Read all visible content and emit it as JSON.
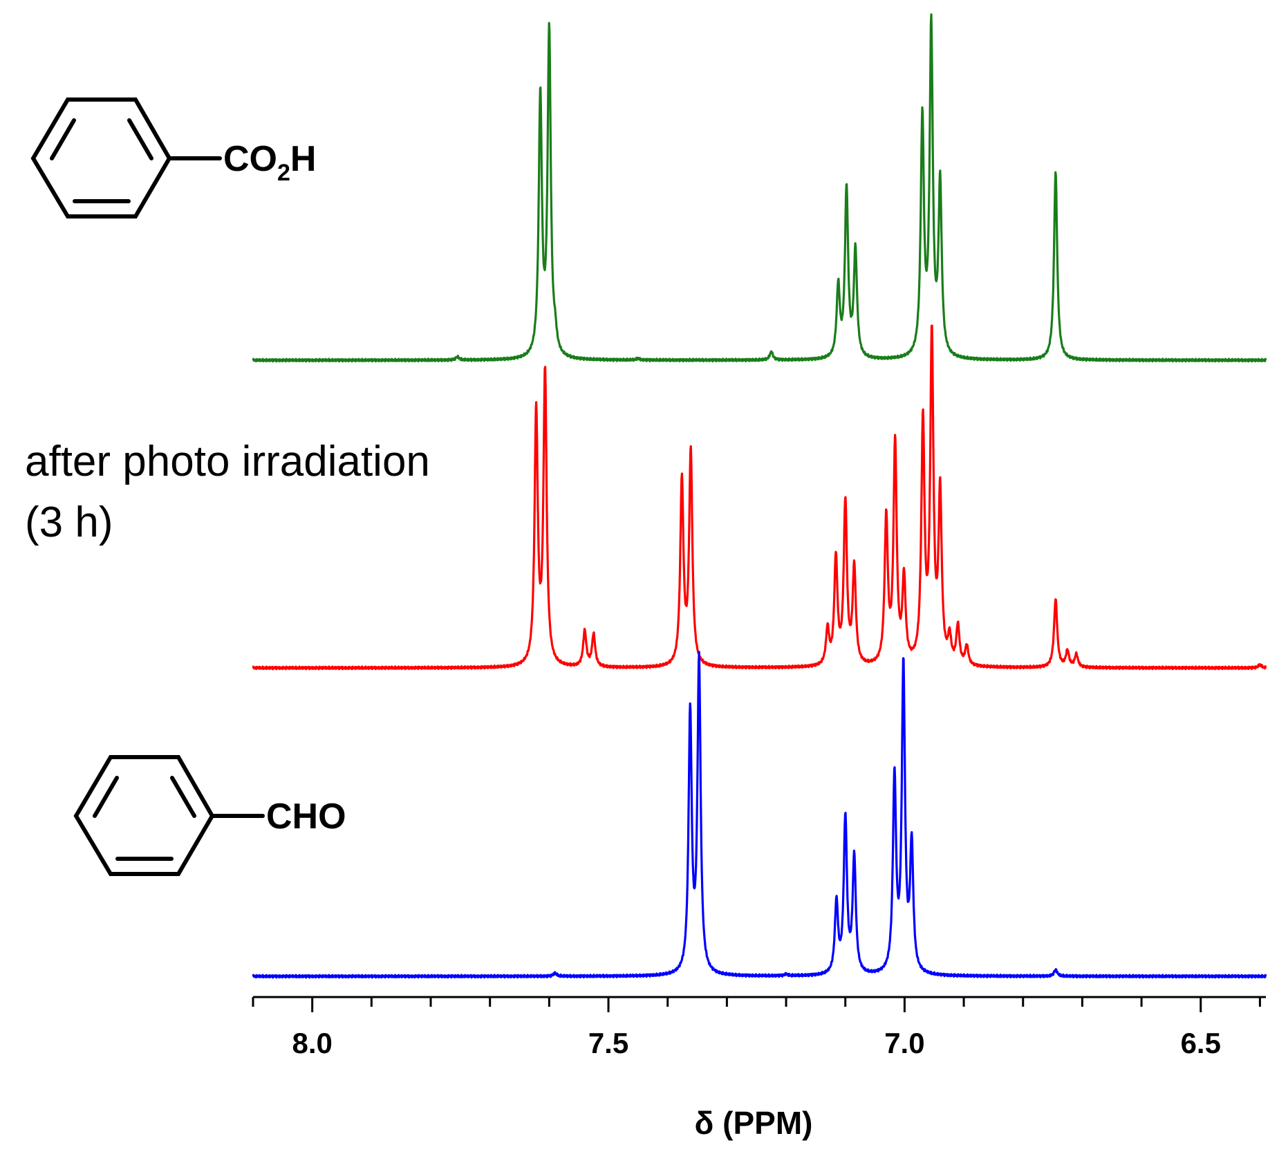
{
  "chart_data": {
    "type": "line",
    "xlabel": "δ (PPM)",
    "xlim": [
      8.1,
      6.39
    ],
    "x_reversed": true,
    "grid": false,
    "x_ticks": [
      {
        "value": 8.0,
        "label": "8.0"
      },
      {
        "value": 7.5,
        "label": "7.5"
      },
      {
        "value": 7.0,
        "label": "7.0"
      },
      {
        "value": 6.5,
        "label": "6.5"
      }
    ],
    "annotations": [
      {
        "id": "line1",
        "text": "after photo irradiation"
      },
      {
        "id": "line2",
        "text": "(3 h)"
      }
    ],
    "structures": {
      "acid": {
        "prefix": "CO",
        "subscript": "2",
        "suffix": "H"
      },
      "aldehyde": {
        "label": "CHO"
      }
    },
    "series": [
      {
        "key": "acid",
        "color": "#1a7d1a",
        "peaks": [
          {
            "x": 7.615,
            "h": 0.8
          },
          {
            "x": 7.6,
            "h": 1.0
          },
          {
            "x": 7.59,
            "h": 0.05
          },
          {
            "x": 7.225,
            "h": 0.025
          },
          {
            "x": 7.112,
            "h": 0.22
          },
          {
            "x": 7.098,
            "h": 0.52
          },
          {
            "x": 7.083,
            "h": 0.33
          },
          {
            "x": 6.97,
            "h": 0.73
          },
          {
            "x": 6.955,
            "h": 1.01
          },
          {
            "x": 6.94,
            "h": 0.53
          },
          {
            "x": 6.745,
            "h": 0.58
          },
          {
            "x": 7.755,
            "h": 0.01
          },
          {
            "x": 7.45,
            "h": 0.005
          }
        ]
      },
      {
        "key": "mixture",
        "color": "#ff0000",
        "peaks": [
          {
            "x": 7.622,
            "h": 0.78
          },
          {
            "x": 7.607,
            "h": 0.9
          },
          {
            "x": 7.54,
            "h": 0.11
          },
          {
            "x": 7.525,
            "h": 0.1
          },
          {
            "x": 7.376,
            "h": 0.57
          },
          {
            "x": 7.361,
            "h": 0.66
          },
          {
            "x": 7.13,
            "h": 0.11
          },
          {
            "x": 7.116,
            "h": 0.33
          },
          {
            "x": 7.1,
            "h": 0.5
          },
          {
            "x": 7.085,
            "h": 0.3
          },
          {
            "x": 7.031,
            "h": 0.45
          },
          {
            "x": 7.016,
            "h": 0.68
          },
          {
            "x": 7.001,
            "h": 0.26
          },
          {
            "x": 6.969,
            "h": 0.74
          },
          {
            "x": 6.954,
            "h": 1.0
          },
          {
            "x": 6.94,
            "h": 0.52
          },
          {
            "x": 6.924,
            "h": 0.08
          },
          {
            "x": 6.91,
            "h": 0.12
          },
          {
            "x": 6.895,
            "h": 0.06
          },
          {
            "x": 6.745,
            "h": 0.21
          },
          {
            "x": 6.725,
            "h": 0.05
          },
          {
            "x": 6.71,
            "h": 0.04
          },
          {
            "x": 6.4,
            "h": 0.01
          }
        ]
      },
      {
        "key": "aldehyde",
        "color": "#0000ff",
        "peaks": [
          {
            "x": 7.362,
            "h": 0.8
          },
          {
            "x": 7.347,
            "h": 0.96
          },
          {
            "x": 7.115,
            "h": 0.22
          },
          {
            "x": 7.1,
            "h": 0.48
          },
          {
            "x": 7.085,
            "h": 0.36
          },
          {
            "x": 7.017,
            "h": 0.6
          },
          {
            "x": 7.002,
            "h": 0.94
          },
          {
            "x": 6.988,
            "h": 0.39
          },
          {
            "x": 6.745,
            "h": 0.02
          },
          {
            "x": 7.59,
            "h": 0.01
          },
          {
            "x": 7.2,
            "h": 0.005
          }
        ]
      }
    ]
  }
}
